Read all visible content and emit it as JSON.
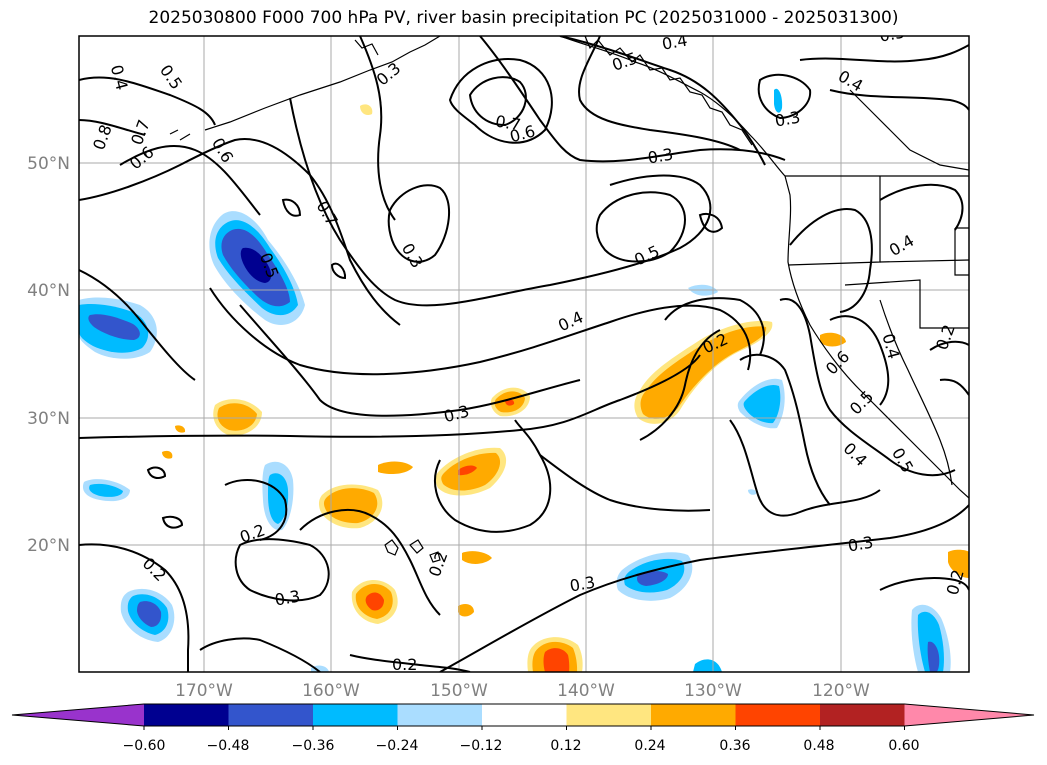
{
  "title": "2025030800 F000 700 hPa PV, river basin precipitation PC (2025031000 - 2025031300)",
  "map": {
    "lat_labels": [
      "50°N",
      "40°N",
      "30°N",
      "20°N"
    ],
    "lon_labels": [
      "170°W",
      "160°W",
      "150°W",
      "140°W",
      "130°W",
      "120°W"
    ],
    "contour_labels": [
      "0.4",
      "0.5",
      "0.3",
      "0.5",
      "0.4",
      "0.3",
      "0.8",
      "0.7",
      "0.6",
      "0.6",
      "0.7",
      "0.6",
      "0.3",
      "0.7",
      "0.3",
      "0.5",
      "0.5",
      "0.4",
      "0.4",
      "0.4",
      "0.3",
      "0.2",
      "0.6",
      "0.5",
      "0.4",
      "0.5",
      "0.4",
      "0.2",
      "0.2",
      "0.2",
      "0.3",
      "0.2",
      "0.3",
      "0.2",
      "0.2",
      "0.3",
      "0.3"
    ]
  },
  "colorbar": {
    "ticks": [
      "−0.60",
      "−0.48",
      "−0.36",
      "−0.24",
      "−0.12",
      "0.12",
      "0.24",
      "0.36",
      "0.48",
      "0.60"
    ],
    "colors": [
      "#9933cc",
      "#000090",
      "#3355cc",
      "#00bbff",
      "#aaddff",
      "#ffffff",
      "#ffe680",
      "#ffaa00",
      "#ff4400",
      "#b22222",
      "#ff88aa"
    ]
  }
}
